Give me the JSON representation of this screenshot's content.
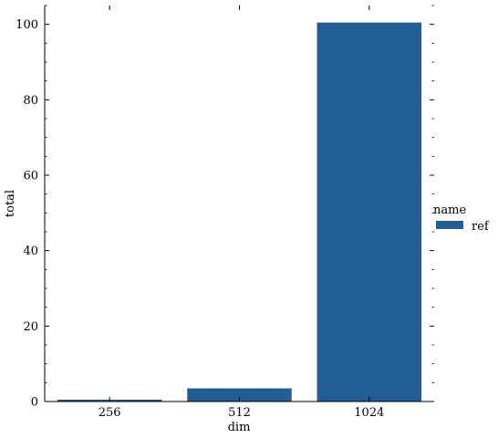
{
  "colors": {
    "bar": "#205e94",
    "axis": "#000000",
    "background": "#ffffff"
  },
  "chart_data": {
    "type": "bar",
    "categories": [
      "256",
      "512",
      "1024"
    ],
    "series": [
      {
        "name": "ref",
        "values": [
          0.4,
          3.4,
          100.4
        ]
      }
    ],
    "xlabel": "dim",
    "ylabel": "total",
    "ylim": [
      0,
      105
    ],
    "yticks": [
      0,
      20,
      40,
      60,
      80,
      100
    ],
    "grid": false,
    "legend": {
      "title": "name",
      "position": "right",
      "entries": [
        "ref"
      ]
    }
  }
}
